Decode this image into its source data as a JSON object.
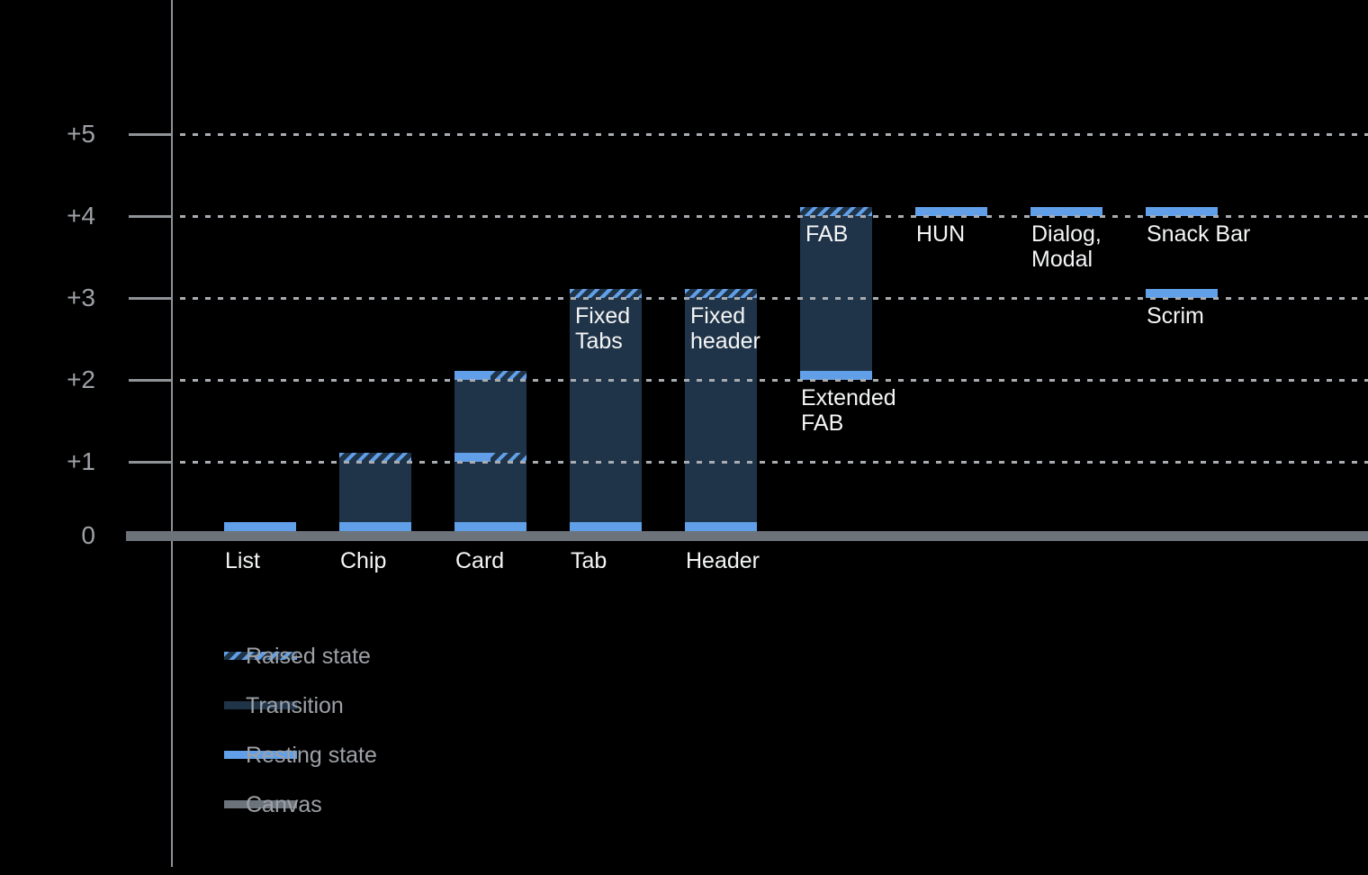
{
  "chart_data": {
    "type": "bar",
    "title": "",
    "xlabel": "",
    "ylabel": "",
    "ylim": [
      0,
      5
    ],
    "grid": "dotted horizontal gridlines at +1 through +5; solid thick canvas baseline at 0",
    "legend_position": "bottom-left",
    "y_axis": {
      "tick_labels": [
        "+5",
        "+4",
        "+3",
        "+2",
        "+1",
        "0"
      ],
      "tick_values": [
        5,
        4,
        3,
        2,
        1,
        0
      ]
    },
    "colors": {
      "background": "#000000",
      "resting": "#61a0e8",
      "transition": "#203449",
      "canvas": "#6c737a",
      "grid_dots": "#a9adb2",
      "axis_line": "#8e9398",
      "y_label_text": "#9da1a6",
      "legend_text": "#9da1a6",
      "component_label_text": "#f4f5f6"
    },
    "legend": {
      "items": [
        {
          "id": "raised",
          "label": "Raised state",
          "swatch": "raised"
        },
        {
          "id": "transition",
          "label": "Transition",
          "swatch": "transition"
        },
        {
          "id": "resting",
          "label": "Resting state",
          "swatch": "resting"
        },
        {
          "id": "canvas",
          "label": "Canvas",
          "swatch": "canvas"
        }
      ]
    },
    "items": [
      {
        "name": "list",
        "slot": 0,
        "bar": null,
        "strips": [
          {
            "level": 0,
            "style": "resting"
          }
        ],
        "labels": [
          {
            "text": [
              "List"
            ],
            "pos": "baseline"
          }
        ]
      },
      {
        "name": "chip",
        "slot": 1,
        "bar": [
          0,
          1
        ],
        "strips": [
          {
            "level": 0,
            "style": "resting"
          },
          {
            "level": 1,
            "style": "raised"
          }
        ],
        "labels": [
          {
            "text": [
              "Chip"
            ],
            "pos": "baseline"
          }
        ]
      },
      {
        "name": "card",
        "slot": 2,
        "bar": [
          0,
          2
        ],
        "strips": [
          {
            "level": 0,
            "style": "resting"
          },
          {
            "level": 1,
            "style": "split"
          },
          {
            "level": 2,
            "style": "split"
          }
        ],
        "labels": [
          {
            "text": [
              "Card"
            ],
            "pos": "baseline"
          }
        ]
      },
      {
        "name": "tab",
        "slot": 3,
        "bar": [
          0,
          3
        ],
        "strips": [
          {
            "level": 0,
            "style": "resting"
          },
          {
            "level": 3,
            "style": "raised"
          }
        ],
        "labels": [
          {
            "text": [
              "Tab"
            ],
            "pos": "baseline"
          },
          {
            "text": [
              "Fixed",
              "Tabs"
            ],
            "pos": "inside",
            "level": 3
          }
        ]
      },
      {
        "name": "header",
        "slot": 4,
        "bar": [
          0,
          3
        ],
        "strips": [
          {
            "level": 0,
            "style": "resting"
          },
          {
            "level": 3,
            "style": "raised"
          }
        ],
        "labels": [
          {
            "text": [
              "Header"
            ],
            "pos": "baseline"
          },
          {
            "text": [
              "Fixed",
              "header"
            ],
            "pos": "inside",
            "level": 3
          }
        ]
      },
      {
        "name": "fab",
        "slot": 5,
        "bar": [
          2,
          4
        ],
        "strips": [
          {
            "level": 2,
            "style": "resting"
          },
          {
            "level": 4,
            "style": "raised"
          }
        ],
        "labels": [
          {
            "text": [
              "FAB"
            ],
            "pos": "inside",
            "level": 4
          },
          {
            "text": [
              "Extended",
              "FAB"
            ],
            "pos": "below",
            "level": 2
          }
        ]
      },
      {
        "name": "hun",
        "slot": 6,
        "bar": null,
        "strips": [
          {
            "level": 4,
            "style": "resting"
          }
        ],
        "labels": [
          {
            "text": [
              "HUN"
            ],
            "pos": "below",
            "level": 4
          }
        ]
      },
      {
        "name": "dialog-modal",
        "slot": 7,
        "bar": null,
        "strips": [
          {
            "level": 4,
            "style": "resting"
          }
        ],
        "labels": [
          {
            "text": [
              "Dialog,",
              "Modal"
            ],
            "pos": "below",
            "level": 4
          }
        ]
      },
      {
        "name": "snack-bar",
        "slot": 8,
        "bar": null,
        "strips": [
          {
            "level": 4,
            "style": "resting"
          }
        ],
        "labels": [
          {
            "text": [
              "Snack Bar"
            ],
            "pos": "below",
            "level": 4
          }
        ]
      },
      {
        "name": "scrim",
        "slot": 8,
        "bar": null,
        "strips": [
          {
            "level": 3,
            "style": "resting"
          }
        ],
        "labels": [
          {
            "text": [
              "Scrim"
            ],
            "pos": "below",
            "level": 3
          }
        ]
      }
    ]
  }
}
